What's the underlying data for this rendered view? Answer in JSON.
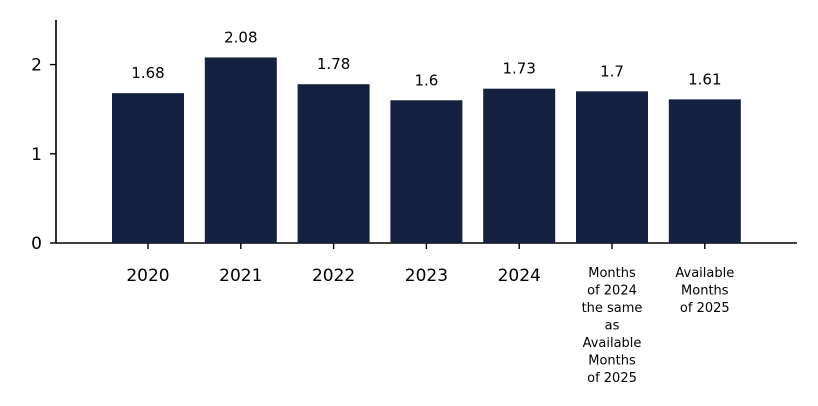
{
  "chart_data": {
    "type": "bar",
    "title": "",
    "xlabel": "",
    "ylabel": "",
    "ylim": [
      0,
      2.5
    ],
    "yticks": [
      0,
      1,
      2
    ],
    "ytick_labels": [
      "0",
      "1",
      "2"
    ],
    "categories": [
      "2020",
      "2021",
      "2022",
      "2023",
      "2024",
      "Months of 2024 the same as Available Months of 2025",
      "Available Months of 2025"
    ],
    "category_display_lines": [
      [
        "2020"
      ],
      [
        "2021"
      ],
      [
        "2022"
      ],
      [
        "2023"
      ],
      [
        "2024"
      ],
      [
        "Months",
        "of 2024",
        "the same",
        "as",
        "Available",
        "Months",
        "of 2025"
      ],
      [
        "Available",
        "Months",
        "of 2025"
      ]
    ],
    "values": [
      1.68,
      2.08,
      1.78,
      1.6,
      1.73,
      1.7,
      1.61
    ],
    "value_labels": [
      "1.68",
      "2.08",
      "1.78",
      "1.6",
      "1.73",
      "1.7",
      "1.61"
    ],
    "bar_color": "#132040",
    "grid": false,
    "legend": "none"
  }
}
